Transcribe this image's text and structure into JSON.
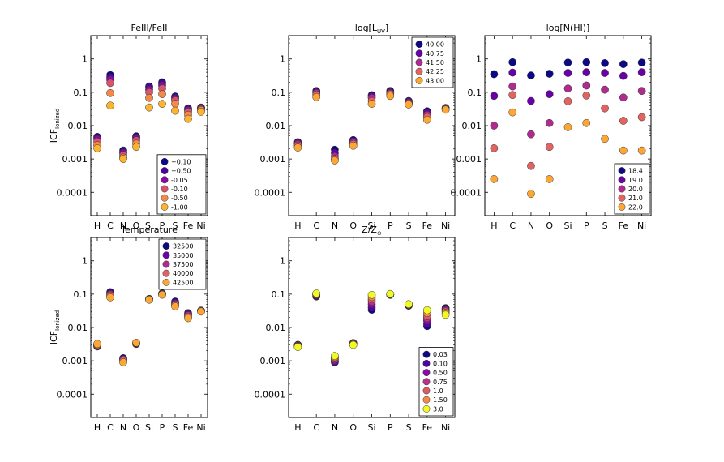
{
  "figure": {
    "y_axis_label": "ICF",
    "y_axis_label_sub": "Ionized",
    "x_tick_labels": [
      "H",
      "C",
      "N",
      "O",
      "Si",
      "P",
      "S",
      "Fe",
      "Ni"
    ],
    "y_tick_labels": [
      "0.0001",
      "0.001",
      "0.01",
      "0.1",
      "1"
    ]
  },
  "colors": {
    "seq5": [
      "#0d0887",
      "#6a00a8",
      "#b12a90",
      "#e16462",
      "#fca636"
    ],
    "seq6": [
      "#0d0887",
      "#4b03a1",
      "#8b0aa5",
      "#d5546e",
      "#f48849",
      "#fdb32f"
    ],
    "seq7": [
      "#0d0887",
      "#5302a3",
      "#8b0aa5",
      "#b83289",
      "#db5c68",
      "#f48849",
      "#f0f921"
    ]
  },
  "chart_data": [
    {
      "type": "scatter",
      "title": "FeIII/FeII",
      "ylabel": "ICF Ionized",
      "yscale": "log",
      "ylim": [
        2e-05,
        5
      ],
      "categories": [
        "H",
        "C",
        "N",
        "O",
        "Si",
        "P",
        "S",
        "Fe",
        "Ni"
      ],
      "legend_position": "bottom-right",
      "series": [
        {
          "name": "+0.10",
          "values": [
            0.0046,
            0.33,
            0.0018,
            0.0048,
            0.15,
            0.2,
            0.075,
            0.033,
            0.035
          ]
        },
        {
          "name": "+0.50",
          "values": [
            0.0042,
            0.28,
            0.0016,
            0.0044,
            0.14,
            0.18,
            0.07,
            0.031,
            0.034
          ]
        },
        {
          "name": "-0.05",
          "values": [
            0.0039,
            0.24,
            0.0015,
            0.0041,
            0.12,
            0.16,
            0.064,
            0.029,
            0.033
          ]
        },
        {
          "name": "-0.10",
          "values": [
            0.0033,
            0.19,
            0.0013,
            0.0036,
            0.1,
            0.13,
            0.057,
            0.026,
            0.031
          ]
        },
        {
          "name": "-0.50",
          "values": [
            0.0026,
            0.095,
            0.0011,
            0.0029,
            0.068,
            0.088,
            0.045,
            0.021,
            0.029
          ]
        },
        {
          "name": "-1.00",
          "values": [
            0.0021,
            0.04,
            0.001,
            0.0023,
            0.035,
            0.045,
            0.028,
            0.016,
            0.026
          ]
        }
      ]
    },
    {
      "type": "scatter",
      "title": "log[L",
      "title_sub": "UV",
      "title_suffix": "]",
      "yscale": "log",
      "ylim": [
        2e-05,
        5
      ],
      "categories": [
        "H",
        "C",
        "N",
        "O",
        "Si",
        "P",
        "S",
        "Fe",
        "Ni"
      ],
      "legend_position": "top-right",
      "series": [
        {
          "name": "40.00",
          "values": [
            0.0032,
            0.11,
            0.0019,
            0.0037,
            0.082,
            0.11,
            0.055,
            0.027,
            0.034
          ]
        },
        {
          "name": "40.75",
          "values": [
            0.003,
            0.1,
            0.0015,
            0.0034,
            0.075,
            0.1,
            0.052,
            0.024,
            0.033
          ]
        },
        {
          "name": "41.50",
          "values": [
            0.0028,
            0.095,
            0.0012,
            0.0031,
            0.068,
            0.095,
            0.049,
            0.021,
            0.032
          ]
        },
        {
          "name": "42.25",
          "values": [
            0.0025,
            0.085,
            0.001,
            0.0028,
            0.055,
            0.088,
            0.046,
            0.018,
            0.031
          ]
        },
        {
          "name": "43.00",
          "values": [
            0.0022,
            0.072,
            0.0009,
            0.0025,
            0.045,
            0.078,
            0.043,
            0.015,
            0.03
          ]
        }
      ]
    },
    {
      "type": "scatter",
      "title": "log[N(HI)]",
      "yscale": "log",
      "ylim": [
        2e-05,
        5
      ],
      "categories": [
        "H",
        "C",
        "N",
        "O",
        "Si",
        "P",
        "S",
        "Fe",
        "Ni"
      ],
      "legend_position": "bottom-right",
      "series": [
        {
          "name": "18.4",
          "values": [
            0.35,
            0.8,
            0.32,
            0.36,
            0.78,
            0.8,
            0.75,
            0.7,
            0.78
          ]
        },
        {
          "name": "19.0",
          "values": [
            0.078,
            0.39,
            0.055,
            0.088,
            0.38,
            0.4,
            0.38,
            0.31,
            0.4
          ]
        },
        {
          "name": "20.0",
          "values": [
            0.01,
            0.15,
            0.0055,
            0.012,
            0.13,
            0.16,
            0.12,
            0.07,
            0.11
          ]
        },
        {
          "name": "21.0",
          "values": [
            0.0021,
            0.083,
            0.00062,
            0.0023,
            0.054,
            0.08,
            0.033,
            0.014,
            0.018
          ]
        },
        {
          "name": "22.0",
          "values": [
            0.00025,
            0.025,
            9e-05,
            0.00025,
            0.009,
            0.012,
            0.004,
            0.0018,
            0.0018
          ]
        }
      ]
    },
    {
      "type": "scatter",
      "title": "Temperature",
      "ylabel": "ICF Ionized",
      "yscale": "log",
      "ylim": [
        2e-05,
        5
      ],
      "categories": [
        "H",
        "C",
        "N",
        "O",
        "Si",
        "P",
        "S",
        "Fe",
        "Ni"
      ],
      "legend_position": "top-right",
      "series": [
        {
          "name": "32500",
          "values": [
            0.0027,
            0.115,
            0.0012,
            0.0032,
            0.072,
            0.105,
            0.06,
            0.027,
            0.032
          ]
        },
        {
          "name": "35000",
          "values": [
            0.0028,
            0.105,
            0.0011,
            0.0033,
            0.071,
            0.102,
            0.055,
            0.025,
            0.032
          ]
        },
        {
          "name": "37500",
          "values": [
            0.0029,
            0.098,
            0.0011,
            0.0033,
            0.07,
            0.1,
            0.051,
            0.023,
            0.031
          ]
        },
        {
          "name": "40000",
          "values": [
            0.003,
            0.09,
            0.001,
            0.0034,
            0.069,
            0.098,
            0.047,
            0.021,
            0.031
          ]
        },
        {
          "name": "42500",
          "values": [
            0.0032,
            0.08,
            0.0009,
            0.0035,
            0.068,
            0.096,
            0.043,
            0.019,
            0.03
          ]
        }
      ]
    },
    {
      "type": "scatter",
      "title": "Z/Z",
      "title_sub": "⊙",
      "yscale": "log",
      "ylim": [
        2e-05,
        5
      ],
      "categories": [
        "H",
        "C",
        "N",
        "O",
        "Si",
        "P",
        "S",
        "Fe",
        "Ni"
      ],
      "legend_position": "bottom-right",
      "series": [
        {
          "name": "0.03",
          "values": [
            0.003,
            0.085,
            0.0009,
            0.0034,
            0.034,
            0.095,
            0.045,
            0.011,
            0.038
          ]
        },
        {
          "name": "0.10",
          "values": [
            0.003,
            0.088,
            0.00095,
            0.0034,
            0.04,
            0.096,
            0.046,
            0.013,
            0.036
          ]
        },
        {
          "name": "0.50",
          "values": [
            0.0029,
            0.092,
            0.001,
            0.0033,
            0.05,
            0.097,
            0.047,
            0.016,
            0.034
          ]
        },
        {
          "name": "0.75",
          "values": [
            0.0029,
            0.095,
            0.0011,
            0.0033,
            0.06,
            0.098,
            0.048,
            0.019,
            0.032
          ]
        },
        {
          "name": "1.0",
          "values": [
            0.0028,
            0.098,
            0.0012,
            0.0032,
            0.07,
            0.099,
            0.048,
            0.022,
            0.03
          ]
        },
        {
          "name": "1.50",
          "values": [
            0.0027,
            0.102,
            0.0013,
            0.0031,
            0.082,
            0.1,
            0.049,
            0.027,
            0.027
          ]
        },
        {
          "name": "3.0",
          "values": [
            0.0026,
            0.105,
            0.0014,
            0.003,
            0.095,
            0.101,
            0.05,
            0.033,
            0.024
          ]
        }
      ]
    }
  ]
}
